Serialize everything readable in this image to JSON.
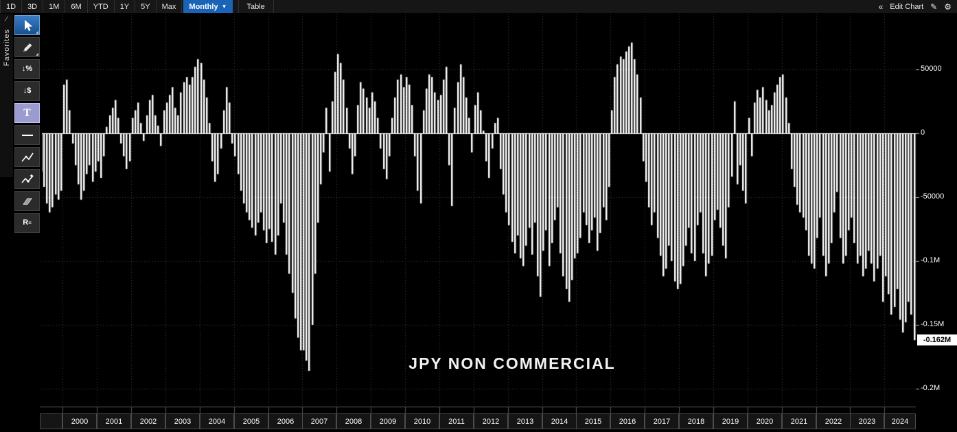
{
  "toolbar": {
    "periods": [
      "1D",
      "3D",
      "1M",
      "6M",
      "YTD",
      "1Y",
      "5Y",
      "Max"
    ],
    "frequency": "Monthly",
    "table_label": "Table",
    "edit_chart_label": "Edit Chart",
    "icons": {
      "collapse": "«",
      "caret": "▼",
      "edit": "✎",
      "gear": "⚙"
    }
  },
  "sidebar": {
    "favorites_label": "Favorites",
    "handle_glyph": "∕",
    "tools": [
      {
        "id": "cursor-tool",
        "selected": true,
        "corner": true
      },
      {
        "id": "draw-annotate-tool",
        "corner": true
      },
      {
        "id": "percent-change-tool"
      },
      {
        "id": "price-change-tool"
      },
      {
        "id": "text-annotation-tool",
        "highlighted": true
      },
      {
        "id": "horizontal-line-tool"
      },
      {
        "id": "trendline-tool"
      },
      {
        "id": "multi-segment-line-tool"
      },
      {
        "id": "eraser-tool"
      },
      {
        "id": "regression-tool"
      }
    ]
  },
  "chart_data": {
    "type": "bar",
    "title": "JPY NON COMMERCIAL",
    "bar_color": "#ffffff",
    "background": "#000000",
    "grid_color": "#454545",
    "unit": "contracts (values stored in thousands)",
    "ylim": [
      -214000,
      93000
    ],
    "y_axis": {
      "ticks": [
        {
          "label": "50000",
          "value": 50000
        },
        {
          "label": "0",
          "value": 0
        },
        {
          "label": "-50000",
          "value": -50000
        },
        {
          "label": "-0.1M",
          "value": -100000
        },
        {
          "label": "-0.15M",
          "value": -150000
        },
        {
          "label": "-0.2M",
          "value": -200000
        }
      ],
      "last_value_label": "-0.162M",
      "last_value": -162000
    },
    "x_axis": {
      "year_labels": [
        "2000",
        "2001",
        "2002",
        "2003",
        "2004",
        "2005",
        "2006",
        "2007",
        "2008",
        "2009",
        "2010",
        "2011",
        "2012",
        "2013",
        "2014",
        "2015",
        "2016",
        "2017",
        "2018",
        "2019",
        "2020",
        "2021",
        "2022",
        "2023",
        "2024"
      ]
    },
    "monthly": [
      {
        "year": 1999,
        "start_month": 5,
        "values": [
          -30,
          -42,
          -55,
          -62,
          -58,
          -48,
          -52,
          -45
        ]
      },
      {
        "year": 2000,
        "values": [
          38,
          42,
          18,
          -8,
          -25,
          -40,
          -52,
          -45,
          -32,
          -25,
          -38,
          -30
        ]
      },
      {
        "year": 2001,
        "values": [
          -22,
          -35,
          -18,
          5,
          14,
          20,
          26,
          12,
          -8,
          -18,
          -28,
          -22
        ]
      },
      {
        "year": 2002,
        "values": [
          12,
          18,
          24,
          8,
          -6,
          14,
          26,
          30,
          14,
          6,
          -10,
          18
        ]
      },
      {
        "year": 2003,
        "values": [
          24,
          30,
          36,
          20,
          14,
          32,
          40,
          44,
          38,
          44,
          52,
          58
        ]
      },
      {
        "year": 2004,
        "values": [
          55,
          42,
          28,
          8,
          -22,
          -38,
          -32,
          -12,
          18,
          36,
          24,
          -8
        ]
      },
      {
        "year": 2005,
        "values": [
          -18,
          -32,
          -45,
          -55,
          -62,
          -68,
          -74,
          -80,
          -70,
          -62,
          -76,
          -86
        ]
      },
      {
        "year": 2006,
        "values": [
          -75,
          -85,
          -95,
          -80,
          -55,
          -70,
          -95,
          -110,
          -125,
          -145,
          -160,
          -170
        ]
      },
      {
        "year": 2007,
        "values": [
          -170,
          -178,
          -186,
          -150,
          -110,
          -70,
          -40,
          -15,
          20,
          -30,
          25,
          48
        ]
      },
      {
        "year": 2008,
        "values": [
          62,
          55,
          42,
          20,
          -12,
          -32,
          -18,
          22,
          40,
          35,
          28,
          20
        ]
      },
      {
        "year": 2009,
        "values": [
          32,
          25,
          12,
          -12,
          -28,
          -36,
          -18,
          12,
          28,
          42,
          46,
          36
        ]
      },
      {
        "year": 2010,
        "values": [
          44,
          38,
          22,
          -18,
          -45,
          -55,
          18,
          35,
          46,
          44,
          32,
          26
        ]
      },
      {
        "year": 2011,
        "values": [
          30,
          42,
          52,
          -25,
          -57,
          20,
          40,
          54,
          44,
          28,
          12,
          -15
        ]
      },
      {
        "year": 2012,
        "values": [
          22,
          32,
          18,
          2,
          -22,
          -35,
          -12,
          8,
          12,
          -28,
          -48,
          -62
        ]
      },
      {
        "year": 2013,
        "values": [
          -72,
          -85,
          -94,
          -80,
          -98,
          -104,
          -88,
          -74,
          -95,
          -70,
          -112,
          -128
        ]
      },
      {
        "year": 2014,
        "values": [
          -92,
          -76,
          -104,
          -86,
          -68,
          -58,
          -94,
          -112,
          -122,
          -132,
          -115,
          -98
        ]
      },
      {
        "year": 2015,
        "values": [
          -94,
          -82,
          -62,
          -72,
          -86,
          -76,
          -66,
          -92,
          -78,
          -58,
          -68,
          -42
        ]
      },
      {
        "year": 2016,
        "values": [
          18,
          44,
          54,
          60,
          58,
          64,
          68,
          71,
          58,
          46,
          28,
          -22
        ]
      },
      {
        "year": 2017,
        "values": [
          -38,
          -58,
          -72,
          -62,
          -82,
          -96,
          -112,
          -106,
          -88,
          -100,
          -116,
          -122
        ]
      },
      {
        "year": 2018,
        "values": [
          -118,
          -104,
          -88,
          -74,
          -94,
          -100,
          -72,
          -62,
          -94,
          -112,
          -102,
          -96
        ]
      },
      {
        "year": 2019,
        "values": [
          -68,
          -60,
          -74,
          -88,
          -98,
          -58,
          -34,
          25,
          -40,
          -25,
          -45,
          -55
        ]
      },
      {
        "year": 2020,
        "values": [
          12,
          -18,
          24,
          34,
          28,
          36,
          26,
          18,
          22,
          32,
          38,
          44
        ]
      },
      {
        "year": 2021,
        "values": [
          46,
          28,
          8,
          -28,
          -42,
          -56,
          -62,
          -66,
          -76,
          -96,
          -102,
          -106
        ]
      },
      {
        "year": 2022,
        "values": [
          -82,
          -66,
          -96,
          -112,
          -102,
          -86,
          -62,
          -46,
          -82,
          -102,
          -96,
          -76
        ]
      },
      {
        "year": 2023,
        "values": [
          -66,
          -86,
          -102,
          -96,
          -112,
          -106,
          -92,
          -102,
          -116,
          -106,
          -96,
          -132
        ]
      },
      {
        "year": 2024,
        "values": [
          -112,
          -126,
          -142,
          -136,
          -122,
          -146,
          -156,
          -148,
          -132,
          -142,
          -162
        ]
      }
    ]
  }
}
